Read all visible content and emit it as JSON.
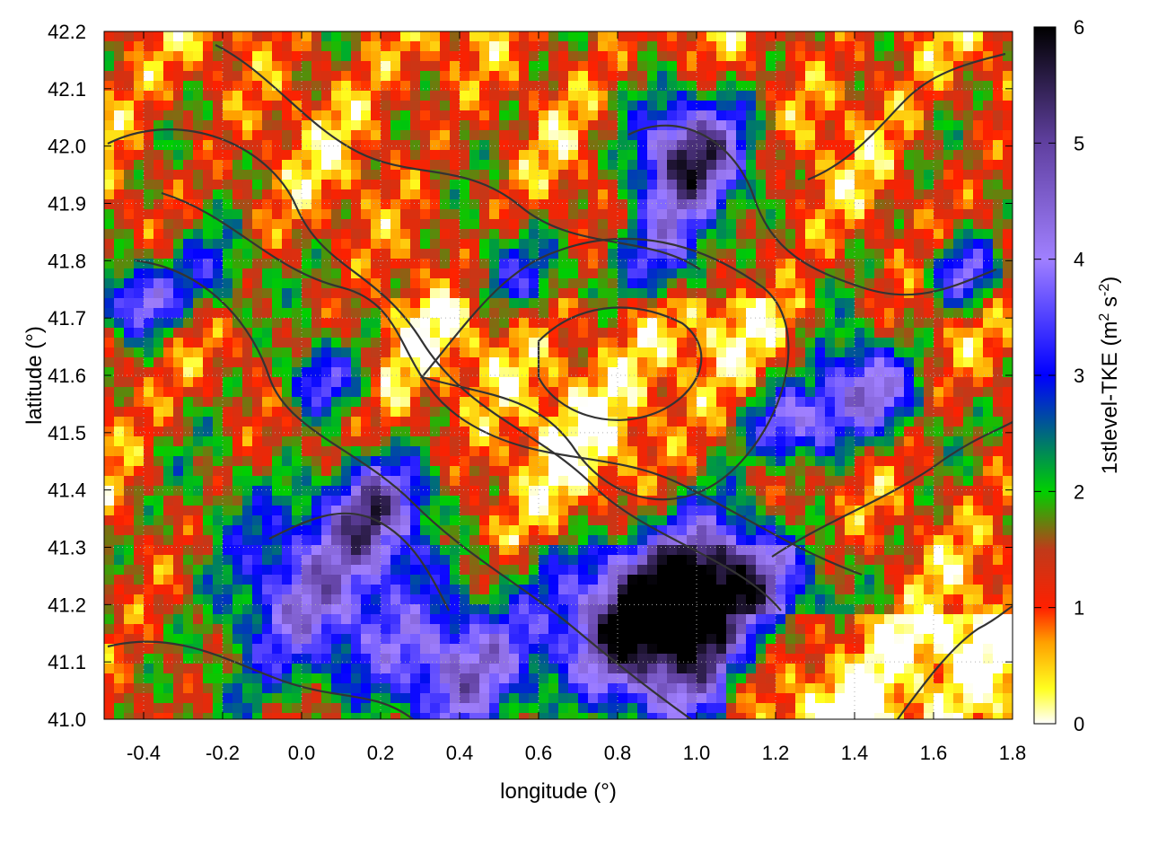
{
  "chart_data": {
    "type": "heatmap",
    "title": "",
    "xlabel": "longitude (°)",
    "ylabel": "latitude (°)",
    "colorbar_label": {
      "main": "1stlevel-TKE (m",
      "sup1": "2",
      "mid": " s",
      "sup2": "-2",
      "end": ")"
    },
    "xlim": [
      -0.5,
      1.8
    ],
    "ylim": [
      41.0,
      42.2
    ],
    "zlim": [
      0,
      6
    ],
    "x_ticks": [
      -0.4,
      -0.2,
      0.0,
      0.2,
      0.4,
      0.6,
      0.8,
      1.0,
      1.2,
      1.4,
      1.6,
      1.8
    ],
    "x_tick_labels": [
      "-0.4",
      "-0.2",
      "0.0",
      "0.2",
      "0.4",
      "0.6",
      "0.8",
      "1.0",
      "1.2",
      "1.4",
      "1.6",
      "1.8"
    ],
    "y_ticks": [
      41.0,
      41.1,
      41.2,
      41.3,
      41.4,
      41.5,
      41.6,
      41.7,
      41.8,
      41.9,
      42.0,
      42.1,
      42.2
    ],
    "y_tick_labels": [
      "41.0",
      "41.1",
      "41.2",
      "41.3",
      "41.4",
      "41.5",
      "41.6",
      "41.7",
      "41.8",
      "41.9",
      "42.0",
      "42.1",
      "42.2"
    ],
    "colorbar_ticks": [
      0,
      1,
      2,
      3,
      4,
      5,
      6
    ],
    "colorbar_tick_labels": [
      "0",
      "1",
      "2",
      "3",
      "4",
      "5",
      "6"
    ],
    "colormap": [
      {
        "v": 0.0,
        "color": "#ffffff"
      },
      {
        "v": 0.3,
        "color": "#ffff20"
      },
      {
        "v": 0.7,
        "color": "#ffa000"
      },
      {
        "v": 1.0,
        "color": "#ff2000"
      },
      {
        "v": 1.5,
        "color": "#c03a1a"
      },
      {
        "v": 2.0,
        "color": "#00d000"
      },
      {
        "v": 3.0,
        "color": "#0000ff"
      },
      {
        "v": 4.0,
        "color": "#a080ff"
      },
      {
        "v": 5.0,
        "color": "#6040a0"
      },
      {
        "v": 6.0,
        "color": "#000000"
      }
    ],
    "grid": true,
    "contour_color": "#333333"
  }
}
